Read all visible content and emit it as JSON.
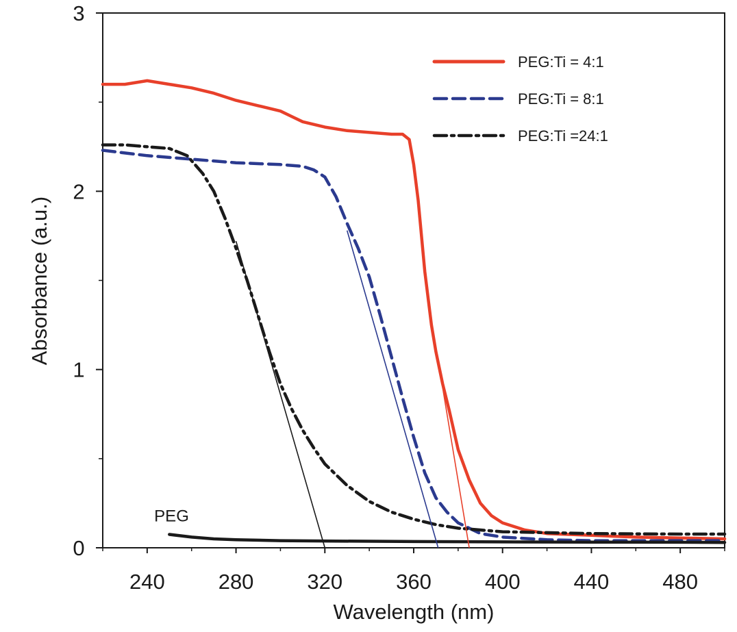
{
  "chart_data": {
    "type": "line",
    "title": "",
    "xlabel": "Wavelength (nm)",
    "ylabel": "Absorbance (a.u.)",
    "xlim": [
      220,
      500
    ],
    "ylim": [
      0,
      3
    ],
    "x_ticks": [
      240,
      280,
      320,
      360,
      400,
      440,
      480
    ],
    "x_tick_labels": [
      "240",
      "280",
      "320",
      "360",
      "400",
      "440",
      "480"
    ],
    "y_ticks": [
      0,
      1,
      2,
      3
    ],
    "y_tick_labels": [
      "0",
      "1",
      "2",
      "3"
    ],
    "y_minor_ticks": [
      0.5,
      1.5,
      2.5
    ],
    "grid": false,
    "legend_position": "top-right",
    "series": [
      {
        "name": "PEG:Ti = 4:1",
        "color": "#e8402a",
        "style": "solid",
        "points": [
          [
            220,
            2.6
          ],
          [
            230,
            2.6
          ],
          [
            240,
            2.62
          ],
          [
            250,
            2.6
          ],
          [
            260,
            2.58
          ],
          [
            270,
            2.55
          ],
          [
            280,
            2.51
          ],
          [
            290,
            2.48
          ],
          [
            300,
            2.45
          ],
          [
            305,
            2.42
          ],
          [
            310,
            2.39
          ],
          [
            320,
            2.36
          ],
          [
            330,
            2.34
          ],
          [
            340,
            2.33
          ],
          [
            350,
            2.32
          ],
          [
            355,
            2.32
          ],
          [
            358,
            2.29
          ],
          [
            360,
            2.15
          ],
          [
            362,
            1.95
          ],
          [
            365,
            1.55
          ],
          [
            368,
            1.25
          ],
          [
            370,
            1.1
          ],
          [
            373,
            0.92
          ],
          [
            376,
            0.77
          ],
          [
            380,
            0.55
          ],
          [
            385,
            0.38
          ],
          [
            390,
            0.25
          ],
          [
            395,
            0.18
          ],
          [
            400,
            0.14
          ],
          [
            410,
            0.1
          ],
          [
            420,
            0.08
          ],
          [
            440,
            0.07
          ],
          [
            460,
            0.06
          ],
          [
            480,
            0.055
          ],
          [
            500,
            0.05
          ]
        ]
      },
      {
        "name": "PEG:Ti = 8:1",
        "color": "#2b3a8f",
        "style": "dashed",
        "points": [
          [
            220,
            2.23
          ],
          [
            240,
            2.2
          ],
          [
            260,
            2.18
          ],
          [
            280,
            2.16
          ],
          [
            300,
            2.15
          ],
          [
            310,
            2.14
          ],
          [
            315,
            2.12
          ],
          [
            320,
            2.08
          ],
          [
            325,
            1.97
          ],
          [
            330,
            1.82
          ],
          [
            335,
            1.68
          ],
          [
            340,
            1.52
          ],
          [
            345,
            1.3
          ],
          [
            350,
            1.07
          ],
          [
            355,
            0.84
          ],
          [
            360,
            0.62
          ],
          [
            365,
            0.42
          ],
          [
            370,
            0.28
          ],
          [
            375,
            0.2
          ],
          [
            380,
            0.14
          ],
          [
            390,
            0.08
          ],
          [
            400,
            0.06
          ],
          [
            420,
            0.045
          ],
          [
            440,
            0.04
          ],
          [
            460,
            0.04
          ],
          [
            480,
            0.04
          ],
          [
            500,
            0.04
          ]
        ]
      },
      {
        "name": "PEG:Ti =24:1",
        "color": "#1a1a1a",
        "style": "dashdot",
        "points": [
          [
            220,
            2.26
          ],
          [
            230,
            2.26
          ],
          [
            240,
            2.25
          ],
          [
            250,
            2.24
          ],
          [
            258,
            2.2
          ],
          [
            265,
            2.1
          ],
          [
            270,
            2.0
          ],
          [
            275,
            1.85
          ],
          [
            280,
            1.68
          ],
          [
            285,
            1.5
          ],
          [
            290,
            1.3
          ],
          [
            295,
            1.1
          ],
          [
            300,
            0.92
          ],
          [
            305,
            0.78
          ],
          [
            310,
            0.66
          ],
          [
            315,
            0.56
          ],
          [
            320,
            0.47
          ],
          [
            330,
            0.35
          ],
          [
            340,
            0.26
          ],
          [
            350,
            0.2
          ],
          [
            360,
            0.16
          ],
          [
            370,
            0.13
          ],
          [
            380,
            0.11
          ],
          [
            390,
            0.1
          ],
          [
            400,
            0.09
          ],
          [
            420,
            0.085
          ],
          [
            440,
            0.08
          ],
          [
            460,
            0.078
          ],
          [
            480,
            0.077
          ],
          [
            500,
            0.077
          ]
        ]
      },
      {
        "name": "PEG",
        "color": "#1a1a1a",
        "style": "solid-thick",
        "points": [
          [
            250,
            0.075
          ],
          [
            260,
            0.06
          ],
          [
            270,
            0.05
          ],
          [
            280,
            0.045
          ],
          [
            300,
            0.04
          ],
          [
            320,
            0.038
          ],
          [
            360,
            0.035
          ],
          [
            400,
            0.033
          ],
          [
            440,
            0.032
          ],
          [
            480,
            0.031
          ],
          [
            500,
            0.03
          ]
        ]
      }
    ],
    "tangent_lines": [
      {
        "color": "#1a1a1a",
        "from": [
          280,
          1.72
        ],
        "to": [
          320,
          0.0
        ]
      },
      {
        "color": "#2b3a8f",
        "from": [
          330,
          1.78
        ],
        "to": [
          371,
          0.0
        ]
      },
      {
        "color": "#e8402a",
        "from": [
          367,
          1.35
        ],
        "to": [
          385,
          0.0
        ]
      }
    ],
    "annotations": [
      {
        "text": "PEG",
        "x": 251,
        "y": 0.17
      }
    ]
  }
}
